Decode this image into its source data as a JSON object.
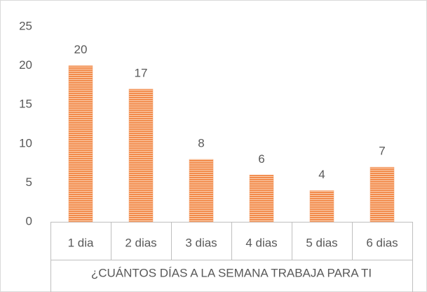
{
  "chart_data": {
    "type": "bar",
    "x_label": "¿CUÁNTOS DÍAS A LA SEMANA TRABAJA PARA TI",
    "categories": [
      "1 dia",
      "2 dias",
      "3 dias",
      "4 dias",
      "5 dias",
      "6 dias"
    ],
    "values": [
      20,
      17,
      8,
      6,
      4,
      7
    ],
    "color": "#f4a06a",
    "ylim": [
      0,
      25
    ],
    "yticks": [
      0,
      5,
      10,
      15,
      20,
      25
    ],
    "grid": false,
    "data_labels": true
  }
}
